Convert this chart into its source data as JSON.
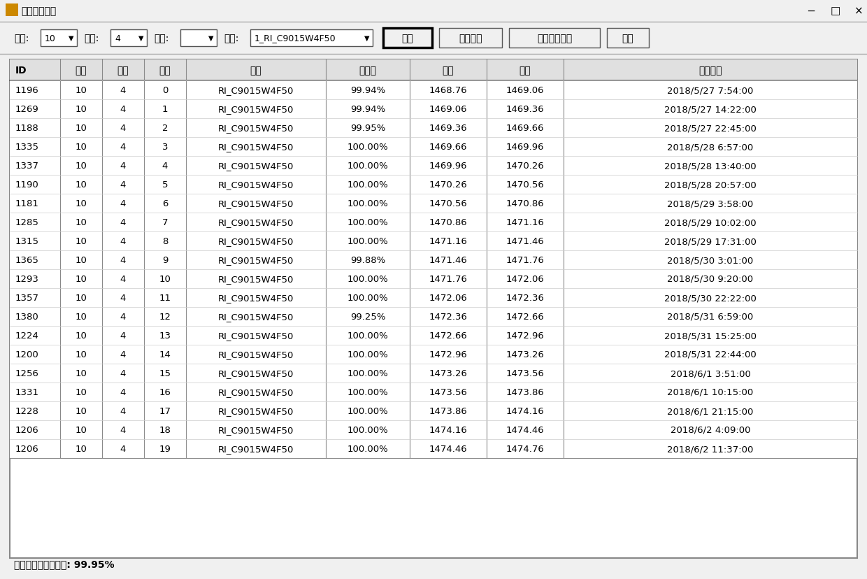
{
  "title": "碾压报表查询",
  "bg_color": "#f0f0f0",
  "toolbar": {
    "cang": "10",
    "duan": "4",
    "ceng": "",
    "jipei": "1_RI_C9015W4F50",
    "buttons": [
      "查询",
      "查看图表",
      "删除选中记录",
      "导出"
    ]
  },
  "columns": [
    "ID",
    "仓号",
    "段号",
    "层号",
    "级配",
    "合格率",
    "底高",
    "顶高",
    "提交时间"
  ],
  "rows": [
    [
      1196,
      10,
      4,
      0,
      "RI_C9015W4F50",
      "99.94%",
      "1468.76",
      "1469.06",
      "2018/5/27 7:54:00"
    ],
    [
      1269,
      10,
      4,
      1,
      "RI_C9015W4F50",
      "99.94%",
      "1469.06",
      "1469.36",
      "2018/5/27 14:22:00"
    ],
    [
      1188,
      10,
      4,
      2,
      "RI_C9015W4F50",
      "99.95%",
      "1469.36",
      "1469.66",
      "2018/5/27 22:45:00"
    ],
    [
      1335,
      10,
      4,
      3,
      "RI_C9015W4F50",
      "100.00%",
      "1469.66",
      "1469.96",
      "2018/5/28 6:57:00"
    ],
    [
      1337,
      10,
      4,
      4,
      "RI_C9015W4F50",
      "100.00%",
      "1469.96",
      "1470.26",
      "2018/5/28 13:40:00"
    ],
    [
      1190,
      10,
      4,
      5,
      "RI_C9015W4F50",
      "100.00%",
      "1470.26",
      "1470.56",
      "2018/5/28 20:57:00"
    ],
    [
      1181,
      10,
      4,
      6,
      "RI_C9015W4F50",
      "100.00%",
      "1470.56",
      "1470.86",
      "2018/5/29 3:58:00"
    ],
    [
      1285,
      10,
      4,
      7,
      "RI_C9015W4F50",
      "100.00%",
      "1470.86",
      "1471.16",
      "2018/5/29 10:02:00"
    ],
    [
      1315,
      10,
      4,
      8,
      "RI_C9015W4F50",
      "100.00%",
      "1471.16",
      "1471.46",
      "2018/5/29 17:31:00"
    ],
    [
      1365,
      10,
      4,
      9,
      "RI_C9015W4F50",
      "99.88%",
      "1471.46",
      "1471.76",
      "2018/5/30 3:01:00"
    ],
    [
      1293,
      10,
      4,
      10,
      "RI_C9015W4F50",
      "100.00%",
      "1471.76",
      "1472.06",
      "2018/5/30 9:20:00"
    ],
    [
      1357,
      10,
      4,
      11,
      "RI_C9015W4F50",
      "100.00%",
      "1472.06",
      "1472.36",
      "2018/5/30 22:22:00"
    ],
    [
      1380,
      10,
      4,
      12,
      "RI_C9015W4F50",
      "99.25%",
      "1472.36",
      "1472.66",
      "2018/5/31 6:59:00"
    ],
    [
      1224,
      10,
      4,
      13,
      "RI_C9015W4F50",
      "100.00%",
      "1472.66",
      "1472.96",
      "2018/5/31 15:25:00"
    ],
    [
      1200,
      10,
      4,
      14,
      "RI_C9015W4F50",
      "100.00%",
      "1472.96",
      "1473.26",
      "2018/5/31 22:44:00"
    ],
    [
      1256,
      10,
      4,
      15,
      "RI_C9015W4F50",
      "100.00%",
      "1473.26",
      "1473.56",
      "2018/6/1 3:51:00"
    ],
    [
      1331,
      10,
      4,
      16,
      "RI_C9015W4F50",
      "100.00%",
      "1473.56",
      "1473.86",
      "2018/6/1 10:15:00"
    ],
    [
      1228,
      10,
      4,
      17,
      "RI_C9015W4F50",
      "100.00%",
      "1473.86",
      "1474.16",
      "2018/6/1 21:15:00"
    ],
    [
      1206,
      10,
      4,
      18,
      "RI_C9015W4F50",
      "100.00%",
      "1474.16",
      "1474.46",
      "2018/6/2 4:09:00"
    ],
    [
      1206,
      10,
      4,
      19,
      "RI_C9015W4F50",
      "100.00%",
      "1474.46",
      "1474.76",
      "2018/6/2 11:37:00"
    ]
  ],
  "footer": "《均値统计》合格率: 99.95%",
  "footer_raw": "【均值统计】合格率: 99.95%"
}
